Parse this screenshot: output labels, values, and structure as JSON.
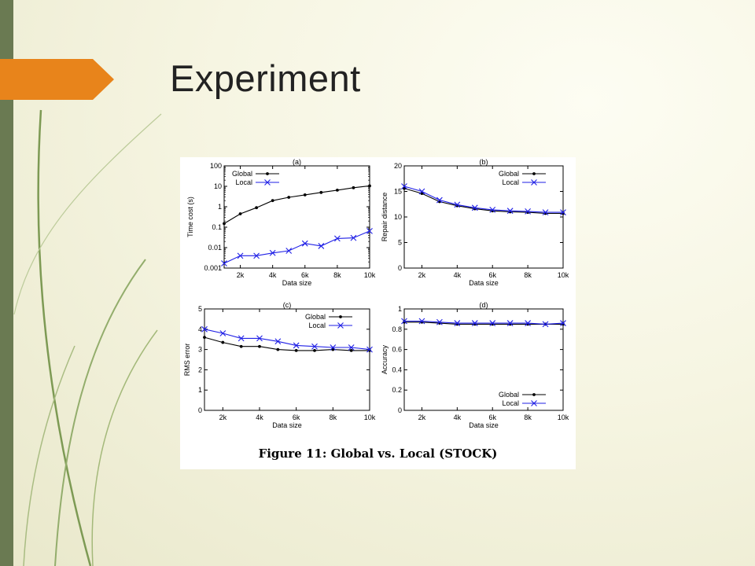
{
  "slide": {
    "title": "Experiment",
    "accent_color": "#e8841b",
    "bar_color": "#6a7a52"
  },
  "figure": {
    "caption": "Figure 11:  Global vs. Local (STOCK)"
  },
  "chart_data": [
    {
      "id": "a",
      "panel_label": "(a)",
      "type": "line",
      "xlabel": "Data size",
      "ylabel": "Time cost (s)",
      "yscale": "log",
      "xlim": [
        1000,
        10000
      ],
      "ylim": [
        0.001,
        100
      ],
      "xticks": [
        2000,
        4000,
        6000,
        8000,
        10000
      ],
      "xtick_labels": [
        "2k",
        "4k",
        "6k",
        "8k",
        "10k"
      ],
      "yticks": [
        0.001,
        0.01,
        0.1,
        1,
        10,
        100
      ],
      "ytick_labels": [
        "0.001",
        "0.01",
        "0.1",
        "1",
        "10",
        "100"
      ],
      "legend_position": "top-left",
      "x": [
        1000,
        2000,
        3000,
        4000,
        5000,
        6000,
        7000,
        8000,
        9000,
        10000
      ],
      "series": [
        {
          "name": "Global",
          "marker": "dot",
          "color": "#000000",
          "values": [
            0.15,
            0.45,
            0.9,
            2.0,
            2.9,
            3.8,
            5.0,
            6.5,
            8.5,
            10.5
          ]
        },
        {
          "name": "Local",
          "marker": "x",
          "color": "#1f1fe6",
          "values": [
            0.0017,
            0.004,
            0.004,
            0.0055,
            0.007,
            0.016,
            0.012,
            0.028,
            0.03,
            0.065
          ]
        }
      ]
    },
    {
      "id": "b",
      "panel_label": "(b)",
      "type": "line",
      "xlabel": "Data size",
      "ylabel": "Repair distance",
      "yscale": "linear",
      "xlim": [
        1000,
        10000
      ],
      "ylim": [
        0,
        20
      ],
      "xticks": [
        2000,
        4000,
        6000,
        8000,
        10000
      ],
      "xtick_labels": [
        "2k",
        "4k",
        "6k",
        "8k",
        "10k"
      ],
      "yticks": [
        0,
        5,
        10,
        15,
        20
      ],
      "ytick_labels": [
        "0",
        "5",
        "10",
        "15",
        "20"
      ],
      "legend_position": "top-right",
      "x": [
        1000,
        2000,
        3000,
        4000,
        5000,
        6000,
        7000,
        8000,
        9000,
        10000
      ],
      "series": [
        {
          "name": "Global",
          "marker": "dot",
          "color": "#000000",
          "values": [
            15.6,
            14.6,
            13.0,
            12.2,
            11.6,
            11.2,
            11.0,
            10.9,
            10.7,
            10.7
          ]
        },
        {
          "name": "Local",
          "marker": "x",
          "color": "#1f1fe6",
          "values": [
            16.0,
            15.0,
            13.3,
            12.4,
            11.8,
            11.4,
            11.2,
            11.1,
            10.9,
            10.9
          ]
        }
      ]
    },
    {
      "id": "c",
      "panel_label": "(c)",
      "type": "line",
      "xlabel": "Data size",
      "ylabel": "RMS error",
      "yscale": "linear",
      "xlim": [
        1000,
        10000
      ],
      "ylim": [
        0,
        5
      ],
      "xticks": [
        2000,
        4000,
        6000,
        8000,
        10000
      ],
      "xtick_labels": [
        "2k",
        "4k",
        "6k",
        "8k",
        "10k"
      ],
      "yticks": [
        0,
        1,
        2,
        3,
        4,
        5
      ],
      "ytick_labels": [
        "0",
        "1",
        "2",
        "3",
        "4",
        "5"
      ],
      "legend_position": "top-right",
      "x": [
        1000,
        2000,
        3000,
        4000,
        5000,
        6000,
        7000,
        8000,
        9000,
        10000
      ],
      "series": [
        {
          "name": "Global",
          "marker": "dot",
          "color": "#000000",
          "values": [
            3.6,
            3.35,
            3.15,
            3.15,
            3.0,
            2.95,
            2.95,
            3.0,
            2.95,
            2.95
          ]
        },
        {
          "name": "Local",
          "marker": "x",
          "color": "#1f1fe6",
          "values": [
            4.0,
            3.8,
            3.55,
            3.55,
            3.4,
            3.2,
            3.15,
            3.1,
            3.1,
            3.0
          ]
        }
      ]
    },
    {
      "id": "d",
      "panel_label": "(d)",
      "type": "line",
      "xlabel": "Data size",
      "ylabel": "Accuracy",
      "yscale": "linear",
      "xlim": [
        1000,
        10000
      ],
      "ylim": [
        0,
        1
      ],
      "xticks": [
        2000,
        4000,
        6000,
        8000,
        10000
      ],
      "xtick_labels": [
        "2k",
        "4k",
        "6k",
        "8k",
        "10k"
      ],
      "yticks": [
        0,
        0.2,
        0.4,
        0.6,
        0.8,
        1
      ],
      "ytick_labels": [
        "0",
        "0.2",
        "0.4",
        "0.6",
        "0.8",
        "1"
      ],
      "legend_position": "bottom-right",
      "x": [
        1000,
        2000,
        3000,
        4000,
        5000,
        6000,
        7000,
        8000,
        9000,
        10000
      ],
      "series": [
        {
          "name": "Global",
          "marker": "dot",
          "color": "#000000",
          "values": [
            0.87,
            0.87,
            0.86,
            0.85,
            0.85,
            0.85,
            0.85,
            0.85,
            0.85,
            0.85
          ]
        },
        {
          "name": "Local",
          "marker": "x",
          "color": "#1f1fe6",
          "values": [
            0.88,
            0.88,
            0.87,
            0.86,
            0.86,
            0.86,
            0.86,
            0.86,
            0.85,
            0.86
          ]
        }
      ]
    }
  ]
}
